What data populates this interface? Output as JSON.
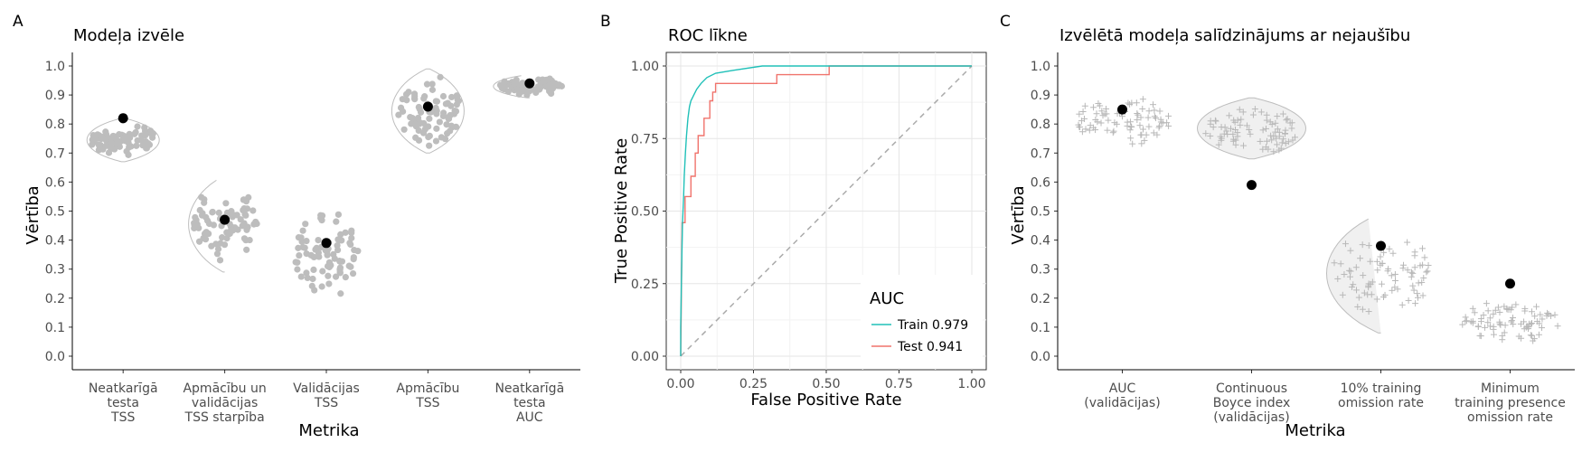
{
  "chart_data": [
    {
      "panel": "A",
      "type": "violin",
      "title": "Modeļa izvēle",
      "xlabel": "Metrika",
      "ylabel": "Vērtība",
      "ylim": [
        0,
        1.0
      ],
      "yticks": [
        "0.0",
        "0.1",
        "0.2",
        "0.3",
        "0.4",
        "0.5",
        "0.6",
        "0.7",
        "0.8",
        "0.9",
        "1.0"
      ],
      "categories": [
        [
          "Neatkarīgā",
          "testa",
          "TSS"
        ],
        [
          "Apmācību un",
          "validācijas",
          "TSS starpība"
        ],
        [
          "Validācijas",
          "TSS"
        ],
        [
          "Apmācību",
          "TSS"
        ],
        [
          "Neatkarīgā",
          "testa",
          "AUC"
        ]
      ],
      "distribution_ranges": [
        [
          0.67,
          0.82
        ],
        [
          0.29,
          0.62
        ],
        [
          0.15,
          0.53
        ],
        [
          0.7,
          0.99
        ],
        [
          0.89,
          0.97
        ]
      ],
      "selected_values": [
        0.82,
        0.47,
        0.39,
        0.86,
        0.94
      ],
      "point_style": "dots",
      "points_per_group": 80
    },
    {
      "panel": "B",
      "type": "line",
      "title": "ROC līkne",
      "xlabel": "False Positive Rate",
      "ylabel": "True Positive Rate",
      "xlim": [
        0,
        1
      ],
      "ylim": [
        0,
        1
      ],
      "xticks": [
        "0.00",
        "0.25",
        "0.50",
        "0.75",
        "1.00"
      ],
      "yticks": [
        "0.00",
        "0.25",
        "0.50",
        "0.75",
        "1.00"
      ],
      "grid": true,
      "legend": {
        "title": "AUC",
        "position": "bottom-right"
      },
      "series": [
        {
          "name": "Train 0.979",
          "color": "#20c0b8",
          "points": [
            [
              0,
              0
            ],
            [
              0,
              0.1
            ],
            [
              0.003,
              0.3
            ],
            [
              0.006,
              0.45
            ],
            [
              0.01,
              0.55
            ],
            [
              0.012,
              0.62
            ],
            [
              0.016,
              0.7
            ],
            [
              0.02,
              0.76
            ],
            [
              0.025,
              0.82
            ],
            [
              0.03,
              0.86
            ],
            [
              0.035,
              0.88
            ],
            [
              0.045,
              0.9
            ],
            [
              0.055,
              0.92
            ],
            [
              0.07,
              0.94
            ],
            [
              0.09,
              0.96
            ],
            [
              0.12,
              0.975
            ],
            [
              0.18,
              0.985
            ],
            [
              0.28,
              1.0
            ],
            [
              1,
              1.0
            ]
          ]
        },
        {
          "name": "Test 0.941",
          "color": "#f0736c",
          "points": [
            [
              0,
              0
            ],
            [
              0.005,
              0.46
            ],
            [
              0.015,
              0.46
            ],
            [
              0.015,
              0.55
            ],
            [
              0.035,
              0.55
            ],
            [
              0.035,
              0.62
            ],
            [
              0.05,
              0.62
            ],
            [
              0.05,
              0.7
            ],
            [
              0.06,
              0.7
            ],
            [
              0.06,
              0.76
            ],
            [
              0.08,
              0.76
            ],
            [
              0.08,
              0.82
            ],
            [
              0.1,
              0.82
            ],
            [
              0.1,
              0.88
            ],
            [
              0.11,
              0.88
            ],
            [
              0.11,
              0.91
            ],
            [
              0.12,
              0.91
            ],
            [
              0.12,
              0.94
            ],
            [
              0.33,
              0.94
            ],
            [
              0.33,
              0.97
            ],
            [
              0.51,
              0.97
            ],
            [
              0.51,
              1.0
            ],
            [
              1,
              1.0
            ]
          ]
        },
        {
          "name": "",
          "color": "#aaaaaa",
          "dashed": true,
          "points": [
            [
              0,
              0
            ],
            [
              1,
              1
            ]
          ]
        }
      ]
    },
    {
      "panel": "C",
      "type": "violin",
      "title": "Izvēlētā modeļa salīdzinājums ar nejaušību",
      "xlabel": "Metrika",
      "ylabel": "Vērtība",
      "ylim": [
        0,
        1.0
      ],
      "yticks": [
        "0.0",
        "0.1",
        "0.2",
        "0.3",
        "0.4",
        "0.5",
        "0.6",
        "0.7",
        "0.8",
        "0.9",
        "1.0"
      ],
      "categories": [
        [
          "AUC",
          "(validācijas)"
        ],
        [
          "Continuous",
          "Boyce index",
          "(validācijas)"
        ],
        [
          "10% training",
          "omission rate"
        ],
        [
          "Minimum",
          "training presence",
          "omission rate"
        ]
      ],
      "distribution_ranges": [
        [
          0.71,
          0.91
        ],
        [
          0.68,
          0.89
        ],
        [
          0.08,
          0.49
        ],
        [
          0.01,
          0.22
        ]
      ],
      "selected_values": [
        0.85,
        0.59,
        0.38,
        0.25
      ],
      "point_style": "cross",
      "points_per_group": 80
    }
  ],
  "panel_labels": [
    "A",
    "B",
    "C"
  ]
}
